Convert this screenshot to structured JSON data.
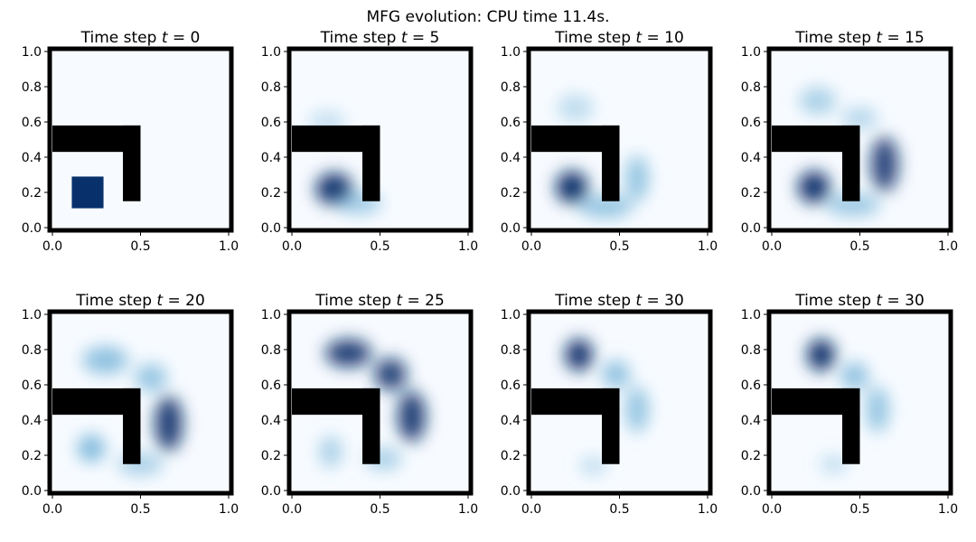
{
  "suptitle": "MFG evolution: CPU time 11.4s.",
  "colors": {
    "cmap_low": "#f7fbff",
    "cmap_mid": "#6baed6",
    "cmap_high": "#08306b",
    "obstacle": "#000000",
    "frame": "#000000"
  },
  "chart_data": [
    {
      "type": "heatmap",
      "title_prefix": "Time step",
      "t": "0",
      "xlim": [
        0,
        1
      ],
      "ylim": [
        0,
        1
      ],
      "xticks": [
        "0.0",
        "0.5",
        "1.0"
      ],
      "yticks": [
        "0.0",
        "0.2",
        "0.4",
        "0.6",
        "0.8",
        "1.0"
      ],
      "obstacle": [
        {
          "x0": 0.0,
          "x1": 0.5,
          "y0": 0.43,
          "y1": 0.58
        },
        {
          "x0": 0.4,
          "x1": 0.5,
          "y0": 0.15,
          "y1": 0.58
        }
      ],
      "density_blobs": [
        {
          "shape": "square",
          "x0": 0.11,
          "x1": 0.29,
          "y0": 0.11,
          "y1": 0.29,
          "value": 1.0
        }
      ]
    },
    {
      "type": "heatmap",
      "title_prefix": "Time step",
      "t": "5",
      "xlim": [
        0,
        1
      ],
      "ylim": [
        0,
        1
      ],
      "xticks": [
        "0.0",
        "0.5",
        "1.0"
      ],
      "yticks": [
        "0.0",
        "0.2",
        "0.4",
        "0.6",
        "0.8",
        "1.0"
      ],
      "obstacle": [
        {
          "x0": 0.0,
          "x1": 0.5,
          "y0": 0.43,
          "y1": 0.58
        },
        {
          "x0": 0.4,
          "x1": 0.5,
          "y0": 0.15,
          "y1": 0.58
        }
      ],
      "density_blobs": [
        {
          "x": 0.24,
          "y": 0.22,
          "sx": 0.08,
          "sy": 0.07,
          "value": 0.95
        },
        {
          "x": 0.38,
          "y": 0.14,
          "sx": 0.1,
          "sy": 0.05,
          "value": 0.35
        },
        {
          "x": 0.2,
          "y": 0.6,
          "sx": 0.08,
          "sy": 0.05,
          "value": 0.1
        }
      ]
    },
    {
      "type": "heatmap",
      "title_prefix": "Time step",
      "t": "10",
      "xlim": [
        0,
        1
      ],
      "ylim": [
        0,
        1
      ],
      "xticks": [
        "0.0",
        "0.5",
        "1.0"
      ],
      "yticks": [
        "0.0",
        "0.2",
        "0.4",
        "0.6",
        "0.8",
        "1.0"
      ],
      "obstacle": [
        {
          "x0": 0.0,
          "x1": 0.5,
          "y0": 0.43,
          "y1": 0.58
        },
        {
          "x0": 0.4,
          "x1": 0.5,
          "y0": 0.15,
          "y1": 0.58
        }
      ],
      "density_blobs": [
        {
          "x": 0.23,
          "y": 0.23,
          "sx": 0.07,
          "sy": 0.07,
          "value": 1.0
        },
        {
          "x": 0.42,
          "y": 0.12,
          "sx": 0.12,
          "sy": 0.05,
          "value": 0.45
        },
        {
          "x": 0.6,
          "y": 0.28,
          "sx": 0.05,
          "sy": 0.1,
          "value": 0.45
        },
        {
          "x": 0.25,
          "y": 0.68,
          "sx": 0.08,
          "sy": 0.06,
          "value": 0.15
        }
      ]
    },
    {
      "type": "heatmap",
      "title_prefix": "Time step",
      "t": "15",
      "xlim": [
        0,
        1
      ],
      "ylim": [
        0,
        1
      ],
      "xticks": [
        "0.0",
        "0.5",
        "1.0"
      ],
      "yticks": [
        "0.0",
        "0.2",
        "0.4",
        "0.6",
        "0.8",
        "1.0"
      ],
      "obstacle": [
        {
          "x0": 0.0,
          "x1": 0.5,
          "y0": 0.43,
          "y1": 0.58
        },
        {
          "x0": 0.4,
          "x1": 0.5,
          "y0": 0.15,
          "y1": 0.58
        }
      ],
      "density_blobs": [
        {
          "x": 0.24,
          "y": 0.23,
          "sx": 0.07,
          "sy": 0.07,
          "value": 0.95
        },
        {
          "x": 0.64,
          "y": 0.36,
          "sx": 0.06,
          "sy": 0.12,
          "value": 0.75
        },
        {
          "x": 0.46,
          "y": 0.13,
          "sx": 0.12,
          "sy": 0.05,
          "value": 0.4
        },
        {
          "x": 0.26,
          "y": 0.72,
          "sx": 0.08,
          "sy": 0.06,
          "value": 0.3
        },
        {
          "x": 0.5,
          "y": 0.62,
          "sx": 0.08,
          "sy": 0.05,
          "value": 0.2
        }
      ]
    },
    {
      "type": "heatmap",
      "title_prefix": "Time step",
      "t": "20",
      "xlim": [
        0,
        1
      ],
      "ylim": [
        0,
        1
      ],
      "xticks": [
        "0.0",
        "0.5",
        "1.0"
      ],
      "yticks": [
        "0.0",
        "0.2",
        "0.4",
        "0.6",
        "0.8",
        "1.0"
      ],
      "obstacle": [
        {
          "x0": 0.0,
          "x1": 0.5,
          "y0": 0.43,
          "y1": 0.58
        },
        {
          "x0": 0.4,
          "x1": 0.5,
          "y0": 0.15,
          "y1": 0.58
        }
      ],
      "density_blobs": [
        {
          "x": 0.22,
          "y": 0.24,
          "sx": 0.06,
          "sy": 0.06,
          "value": 0.6
        },
        {
          "x": 0.66,
          "y": 0.38,
          "sx": 0.06,
          "sy": 0.12,
          "value": 0.85
        },
        {
          "x": 0.3,
          "y": 0.74,
          "sx": 0.1,
          "sy": 0.06,
          "value": 0.5
        },
        {
          "x": 0.56,
          "y": 0.64,
          "sx": 0.07,
          "sy": 0.06,
          "value": 0.45
        },
        {
          "x": 0.5,
          "y": 0.15,
          "sx": 0.1,
          "sy": 0.05,
          "value": 0.3
        }
      ]
    },
    {
      "type": "heatmap",
      "title_prefix": "Time step",
      "t": "25",
      "xlim": [
        0,
        1
      ],
      "ylim": [
        0,
        1
      ],
      "xticks": [
        "0.0",
        "0.5",
        "1.0"
      ],
      "yticks": [
        "0.0",
        "0.2",
        "0.4",
        "0.6",
        "0.8",
        "1.0"
      ],
      "obstacle": [
        {
          "x0": 0.0,
          "x1": 0.5,
          "y0": 0.43,
          "y1": 0.58
        },
        {
          "x0": 0.4,
          "x1": 0.5,
          "y0": 0.15,
          "y1": 0.58
        }
      ],
      "density_blobs": [
        {
          "x": 0.32,
          "y": 0.78,
          "sx": 0.1,
          "sy": 0.06,
          "value": 0.85
        },
        {
          "x": 0.56,
          "y": 0.66,
          "sx": 0.07,
          "sy": 0.07,
          "value": 0.8
        },
        {
          "x": 0.68,
          "y": 0.42,
          "sx": 0.06,
          "sy": 0.11,
          "value": 0.85
        },
        {
          "x": 0.22,
          "y": 0.22,
          "sx": 0.05,
          "sy": 0.07,
          "value": 0.3
        },
        {
          "x": 0.52,
          "y": 0.18,
          "sx": 0.08,
          "sy": 0.05,
          "value": 0.3
        }
      ]
    },
    {
      "type": "heatmap",
      "title_prefix": "Time step",
      "t": "30",
      "xlim": [
        0,
        1
      ],
      "ylim": [
        0,
        1
      ],
      "xticks": [
        "0.0",
        "0.5",
        "1.0"
      ],
      "yticks": [
        "0.0",
        "0.2",
        "0.4",
        "0.6",
        "0.8",
        "1.0"
      ],
      "obstacle": [
        {
          "x0": 0.0,
          "x1": 0.5,
          "y0": 0.43,
          "y1": 0.58
        },
        {
          "x0": 0.4,
          "x1": 0.5,
          "y0": 0.15,
          "y1": 0.58
        }
      ],
      "density_blobs": [
        {
          "x": 0.27,
          "y": 0.77,
          "sx": 0.06,
          "sy": 0.07,
          "value": 0.95
        },
        {
          "x": 0.48,
          "y": 0.66,
          "sx": 0.06,
          "sy": 0.06,
          "value": 0.5
        },
        {
          "x": 0.6,
          "y": 0.46,
          "sx": 0.05,
          "sy": 0.1,
          "value": 0.45
        },
        {
          "x": 0.35,
          "y": 0.14,
          "sx": 0.06,
          "sy": 0.04,
          "value": 0.15
        }
      ]
    },
    {
      "type": "heatmap",
      "title_prefix": "Time step",
      "t": "30",
      "xlim": [
        0,
        1
      ],
      "ylim": [
        0,
        1
      ],
      "xticks": [
        "0.0",
        "0.5",
        "1.0"
      ],
      "yticks": [
        "0.0",
        "0.2",
        "0.4",
        "0.6",
        "0.8",
        "1.0"
      ],
      "obstacle": [
        {
          "x0": 0.0,
          "x1": 0.5,
          "y0": 0.43,
          "y1": 0.58
        },
        {
          "x0": 0.4,
          "x1": 0.5,
          "y0": 0.15,
          "y1": 0.58
        }
      ],
      "density_blobs": [
        {
          "x": 0.28,
          "y": 0.77,
          "sx": 0.06,
          "sy": 0.07,
          "value": 1.0
        },
        {
          "x": 0.47,
          "y": 0.65,
          "sx": 0.06,
          "sy": 0.06,
          "value": 0.5
        },
        {
          "x": 0.6,
          "y": 0.46,
          "sx": 0.05,
          "sy": 0.1,
          "value": 0.45
        },
        {
          "x": 0.35,
          "y": 0.15,
          "sx": 0.06,
          "sy": 0.04,
          "value": 0.15
        }
      ]
    }
  ]
}
